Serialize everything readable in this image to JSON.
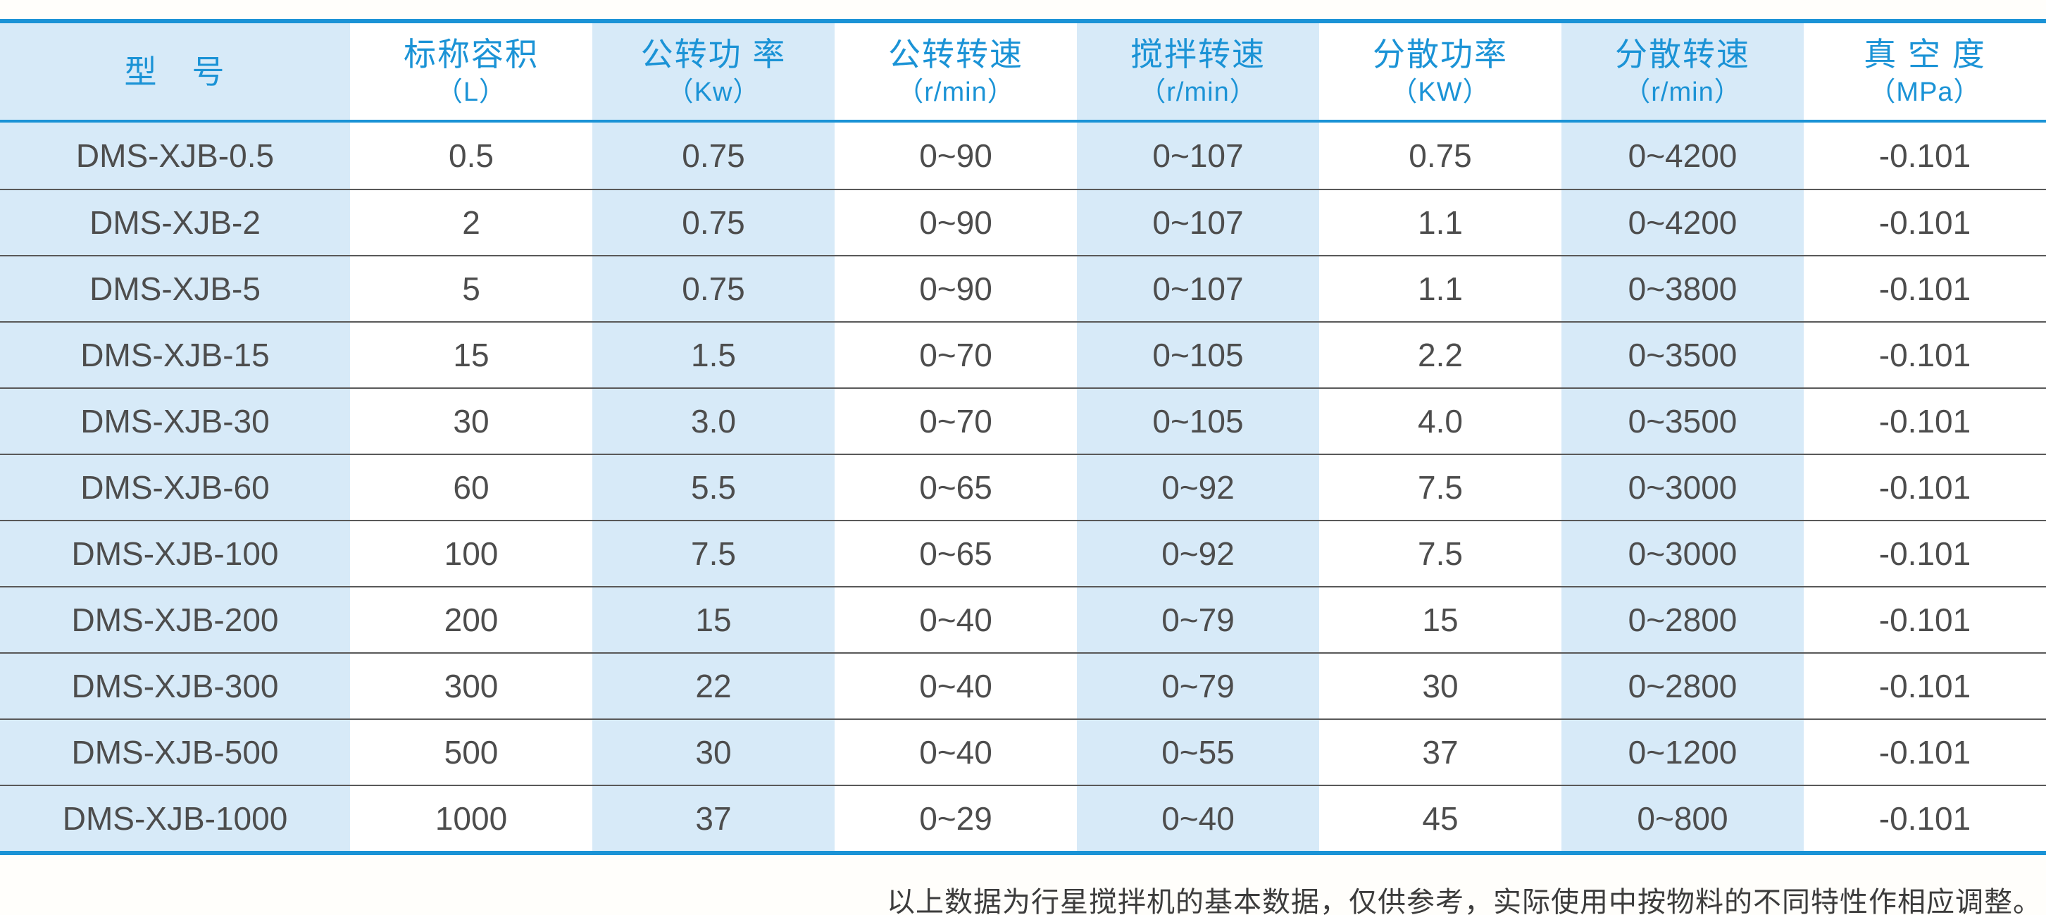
{
  "colors": {
    "accent_blue": "#1b93d6",
    "light_blue_column": "#d7eaf8",
    "body_text": "#4d4d4d",
    "row_divider": "#595959"
  },
  "table": {
    "columns": [
      {
        "name": "型　号",
        "unit": ""
      },
      {
        "name": "标称容积",
        "unit": "（L）"
      },
      {
        "name": "公转功 率",
        "unit": "（Kw）"
      },
      {
        "name": "公转转速",
        "unit": "（r/min）"
      },
      {
        "name": "搅拌转速",
        "unit": "（r/min）"
      },
      {
        "name": "分散功率",
        "unit": "（KW）"
      },
      {
        "name": "分散转速",
        "unit": "（r/min）"
      },
      {
        "name": "真 空 度",
        "unit": "（MPa）"
      }
    ],
    "rows": [
      [
        "DMS-XJB-0.5",
        "0.5",
        "0.75",
        "0~90",
        "0~107",
        "0.75",
        "0~4200",
        "-0.101"
      ],
      [
        "DMS-XJB-2",
        "2",
        "0.75",
        "0~90",
        "0~107",
        "1.1",
        "0~4200",
        "-0.101"
      ],
      [
        "DMS-XJB-5",
        "5",
        "0.75",
        "0~90",
        "0~107",
        "1.1",
        "0~3800",
        "-0.101"
      ],
      [
        "DMS-XJB-15",
        "15",
        "1.5",
        "0~70",
        "0~105",
        "2.2",
        "0~3500",
        "-0.101"
      ],
      [
        "DMS-XJB-30",
        "30",
        "3.0",
        "0~70",
        "0~105",
        "4.0",
        "0~3500",
        "-0.101"
      ],
      [
        "DMS-XJB-60",
        "60",
        "5.5",
        "0~65",
        "0~92",
        "7.5",
        "0~3000",
        "-0.101"
      ],
      [
        "DMS-XJB-100",
        "100",
        "7.5",
        "0~65",
        "0~92",
        "7.5",
        "0~3000",
        "-0.101"
      ],
      [
        "DMS-XJB-200",
        "200",
        "15",
        "0~40",
        "0~79",
        "15",
        "0~2800",
        "-0.101"
      ],
      [
        "DMS-XJB-300",
        "300",
        "22",
        "0~40",
        "0~79",
        "30",
        "0~2800",
        "-0.101"
      ],
      [
        "DMS-XJB-500",
        "500",
        "30",
        "0~40",
        "0~55",
        "37",
        "0~1200",
        "-0.101"
      ],
      [
        "DMS-XJB-1000",
        "1000",
        "37",
        "0~29",
        "0~40",
        "45",
        "0~800",
        "-0.101"
      ]
    ]
  },
  "footer": {
    "note": "以上数据为行星搅拌机的基本数据，仅供参考，实际使用中按物料的不同特性作相应调整。"
  }
}
